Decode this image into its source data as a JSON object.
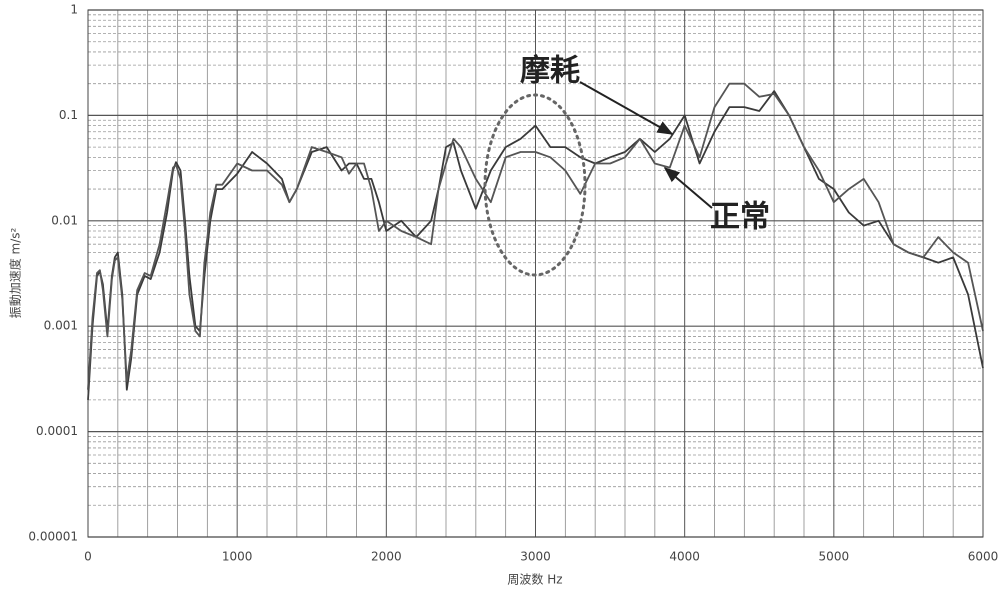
{
  "chart_data": {
    "type": "line",
    "x_label": "周波数 Hz",
    "y_label": "振動加速度 m/s²",
    "log_y": true,
    "grid": true,
    "minor_grid": true,
    "xlim": [
      0,
      6000
    ],
    "ylim": [
      1e-05,
      1
    ],
    "xticks": [
      0,
      1000,
      2000,
      3000,
      4000,
      5000,
      6000
    ],
    "yticks": [
      1e-05,
      0.0001,
      0.001,
      0.01,
      0.1,
      1
    ],
    "x": [
      0,
      30,
      60,
      80,
      100,
      130,
      160,
      180,
      200,
      230,
      260,
      290,
      330,
      380,
      420,
      480,
      530,
      570,
      590,
      620,
      650,
      680,
      720,
      750,
      780,
      820,
      860,
      900,
      1000,
      1100,
      1200,
      1300,
      1350,
      1400,
      1500,
      1600,
      1700,
      1750,
      1800,
      1850,
      1900,
      1950,
      2000,
      2100,
      2200,
      2300,
      2350,
      2400,
      2450,
      2500,
      2600,
      2700,
      2800,
      2900,
      3000,
      3100,
      3200,
      3300,
      3400,
      3500,
      3600,
      3700,
      3800,
      3900,
      4000,
      4100,
      4200,
      4300,
      4400,
      4500,
      4600,
      4700,
      4800,
      4900,
      5000,
      5100,
      5200,
      5300,
      5400,
      5500,
      5600,
      5700,
      5800,
      5900,
      6000
    ],
    "series": [
      {
        "name": "摩耗",
        "color": "#3a3a3a",
        "values": [
          0.0002,
          0.001,
          0.003,
          0.0033,
          0.0025,
          0.0009,
          0.003,
          0.0045,
          0.005,
          0.002,
          0.00025,
          0.0005,
          0.002,
          0.003,
          0.0028,
          0.005,
          0.012,
          0.03,
          0.036,
          0.03,
          0.01,
          0.003,
          0.001,
          0.0009,
          0.003,
          0.01,
          0.02,
          0.02,
          0.028,
          0.045,
          0.035,
          0.025,
          0.015,
          0.02,
          0.045,
          0.05,
          0.03,
          0.035,
          0.035,
          0.025,
          0.025,
          0.015,
          0.008,
          0.01,
          0.007,
          0.01,
          0.02,
          0.05,
          0.055,
          0.03,
          0.013,
          0.03,
          0.05,
          0.06,
          0.08,
          0.05,
          0.05,
          0.04,
          0.035,
          0.04,
          0.045,
          0.06,
          0.045,
          0.06,
          0.1,
          0.035,
          0.07,
          0.12,
          0.12,
          0.11,
          0.17,
          0.1,
          0.05,
          0.025,
          0.02,
          0.012,
          0.009,
          0.01,
          0.006,
          0.005,
          0.0045,
          0.004,
          0.0045,
          0.002,
          0.0004
        ]
      },
      {
        "name": "正常",
        "color": "#555555",
        "values": [
          0.00025,
          0.0012,
          0.0032,
          0.0034,
          0.0022,
          0.0008,
          0.0028,
          0.0042,
          0.0045,
          0.0018,
          0.0003,
          0.0006,
          0.0022,
          0.0032,
          0.003,
          0.006,
          0.015,
          0.032,
          0.034,
          0.025,
          0.008,
          0.002,
          0.0009,
          0.0008,
          0.004,
          0.012,
          0.022,
          0.022,
          0.035,
          0.03,
          0.03,
          0.022,
          0.015,
          0.02,
          0.05,
          0.045,
          0.04,
          0.028,
          0.035,
          0.035,
          0.02,
          0.008,
          0.01,
          0.008,
          0.007,
          0.006,
          0.02,
          0.035,
          0.06,
          0.05,
          0.025,
          0.015,
          0.04,
          0.045,
          0.045,
          0.04,
          0.03,
          0.018,
          0.035,
          0.035,
          0.04,
          0.06,
          0.035,
          0.032,
          0.08,
          0.04,
          0.12,
          0.2,
          0.2,
          0.15,
          0.16,
          0.1,
          0.05,
          0.03,
          0.015,
          0.02,
          0.025,
          0.015,
          0.006,
          0.005,
          0.0045,
          0.007,
          0.005,
          0.004,
          0.0009
        ]
      }
    ]
  }
}
